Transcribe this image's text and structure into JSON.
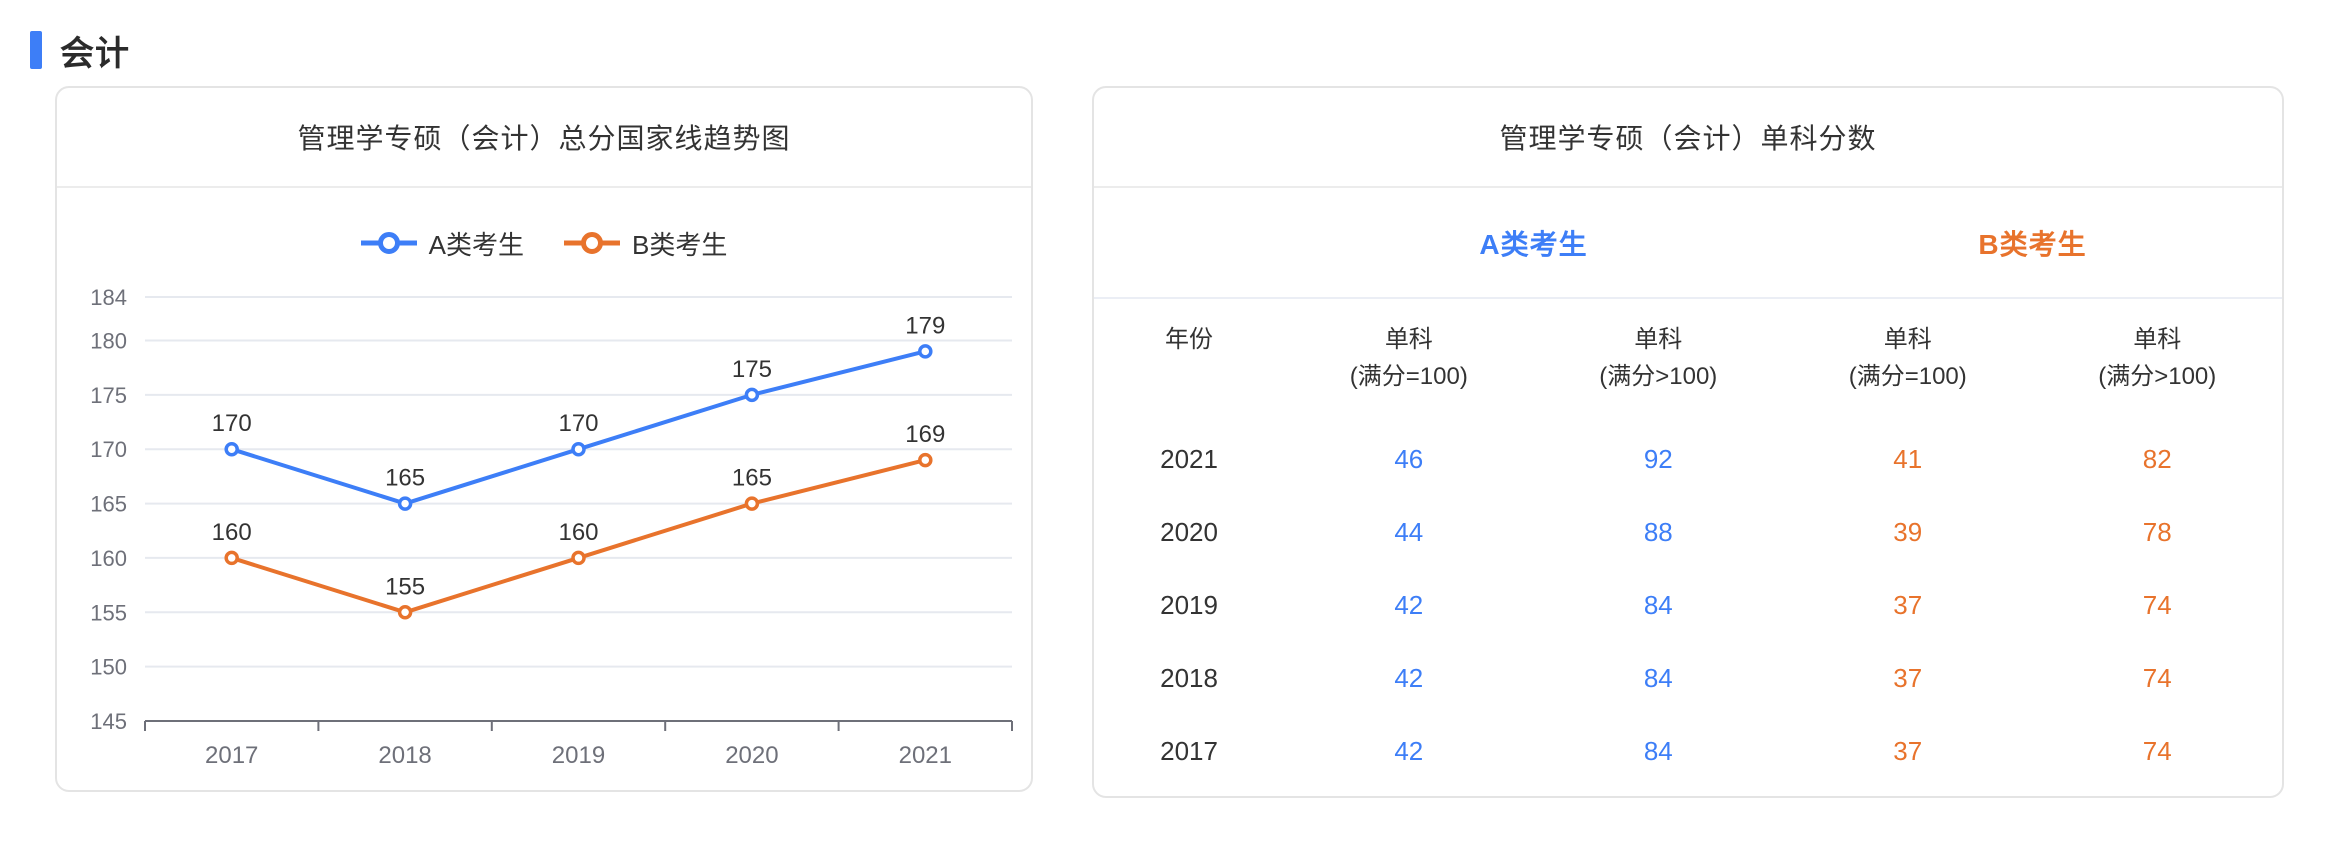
{
  "page": {
    "section_title": "会计"
  },
  "colors": {
    "accent_blue": "#3D7EF7",
    "accent_orange": "#E8732C",
    "text_dark": "#333333",
    "axis_gray": "#6E7079",
    "grid_gray": "#E6E9EF"
  },
  "chart_card": {
    "title": "管理学专硕（会计）总分国家线趋势图"
  },
  "chart_data": {
    "type": "line",
    "title": "管理学专硕（会计）总分国家线趋势图",
    "categories": [
      "2017",
      "2018",
      "2019",
      "2020",
      "2021"
    ],
    "series": [
      {
        "name": "A类考生",
        "color": "#3D7EF7",
        "values": [
          170,
          165,
          170,
          175,
          179
        ]
      },
      {
        "name": "B类考生",
        "color": "#E8732C",
        "values": [
          160,
          155,
          160,
          165,
          169
        ]
      }
    ],
    "xlabel": "",
    "ylabel": "",
    "ylim": [
      145,
      184
    ],
    "y_ticks": [
      145,
      150,
      155,
      160,
      165,
      170,
      175,
      180,
      184
    ],
    "grid": true,
    "legend_position": "top",
    "data_labels": true,
    "marker": "hollow-circle"
  },
  "table_card": {
    "title": "管理学专硕（会计）单科分数",
    "group_headers": [
      {
        "label": "A类考生",
        "color": "#3D7EF7"
      },
      {
        "label": "B类考生",
        "color": "#E8732C"
      }
    ],
    "columns": [
      {
        "line1": "年份",
        "line2": ""
      },
      {
        "line1": "单科",
        "line2": "(满分=100)"
      },
      {
        "line1": "单科",
        "line2": "(满分>100)"
      },
      {
        "line1": "单科",
        "line2": "(满分=100)"
      },
      {
        "line1": "单科",
        "line2": "(满分>100)"
      }
    ],
    "rows": [
      [
        "2021",
        "46",
        "92",
        "41",
        "82"
      ],
      [
        "2020",
        "44",
        "88",
        "39",
        "78"
      ],
      [
        "2019",
        "42",
        "84",
        "37",
        "74"
      ],
      [
        "2018",
        "42",
        "84",
        "37",
        "74"
      ],
      [
        "2017",
        "42",
        "84",
        "37",
        "74"
      ]
    ]
  }
}
